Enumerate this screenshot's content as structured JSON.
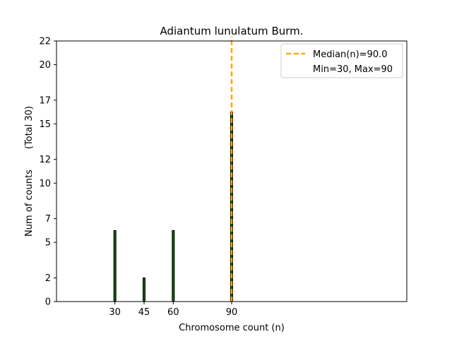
{
  "chart_data": {
    "type": "bar",
    "title": "Adiantum lunulatum Burm.",
    "xlabel": "Chromosome count (n)",
    "ylabel": "Num of counts       (Total 30)",
    "x": [
      30,
      45,
      60,
      90
    ],
    "values": [
      6,
      2,
      6,
      16
    ],
    "xlim": [
      0,
      180
    ],
    "ylim": [
      0,
      22
    ],
    "xticks": [
      30,
      45,
      60,
      90
    ],
    "yticks": [
      0,
      2,
      5,
      7,
      10,
      12,
      15,
      17,
      20,
      22
    ],
    "bar_color": "#006400",
    "bar_edge_color": "#000000",
    "median": 90.0,
    "median_color": "#FFA500",
    "legend": {
      "placement": "top-right",
      "entries": [
        "Median(n)=90.0",
        "Min=30, Max=90"
      ]
    },
    "grid": false
  }
}
